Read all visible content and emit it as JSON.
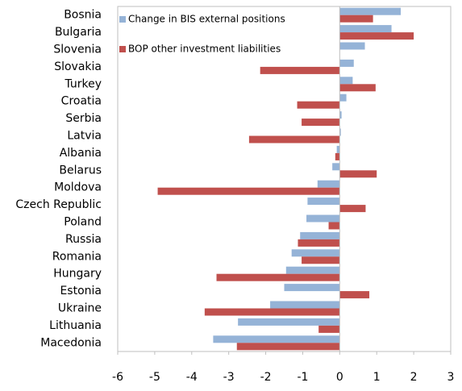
{
  "chart_data": {
    "type": "hbar",
    "categories": [
      "Bosnia",
      "Bulgaria",
      "Slovenia",
      "Slovakia",
      "Turkey",
      "Croatia",
      "Serbia",
      "Latvia",
      "Albania",
      "Belarus",
      "Moldova",
      "Czech Republic",
      "Poland",
      "Russia",
      "Romania",
      "Hungary",
      "Estonia",
      "Ukraine",
      "Lithuania",
      "Macedonia"
    ],
    "series": [
      {
        "name": "Change in BIS external positions",
        "color": "#95b3d7",
        "values": [
          1.65,
          1.4,
          0.68,
          0.38,
          0.35,
          0.18,
          0.05,
          0.03,
          -0.08,
          -0.2,
          -0.6,
          -0.87,
          -0.9,
          -1.07,
          -1.3,
          -1.45,
          -1.5,
          -1.88,
          -2.75,
          -3.42
        ]
      },
      {
        "name": "BOP other investment liabilities",
        "color": "#c0504d",
        "values": [
          0.9,
          2.0,
          0,
          -2.15,
          0.97,
          -1.15,
          -1.03,
          -2.45,
          -0.12,
          1.0,
          -4.92,
          0.7,
          -0.3,
          -1.13,
          -1.03,
          -3.33,
          0.8,
          -3.65,
          -0.57,
          -2.78
        ]
      }
    ],
    "xlim": [
      -6,
      3
    ],
    "xticks": [
      -6,
      -5,
      -4,
      -3,
      -2,
      -1,
      0,
      1,
      2,
      3
    ]
  }
}
